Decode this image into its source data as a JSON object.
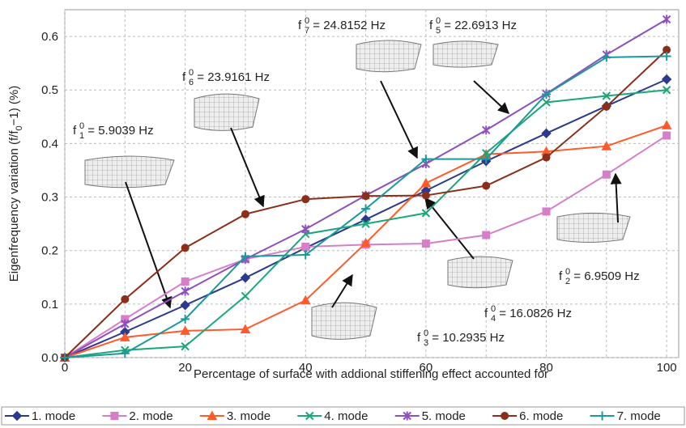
{
  "chart_data": {
    "type": "line",
    "x_label": "Percentage of surface with addional stiffening effect accounted for",
    "y_label": {
      "pre": "Eigenfrequency variation (f/f",
      "sub": "0",
      "post": "−1) (%)"
    },
    "x": [
      0,
      10,
      20,
      30,
      40,
      50,
      60,
      70,
      80,
      90,
      100
    ],
    "xlim": [
      0,
      102
    ],
    "xticks": [
      0,
      20,
      40,
      60,
      80,
      100
    ],
    "x_minor_grid": [
      10,
      30,
      50,
      70,
      90
    ],
    "ylim": [
      0,
      0.65
    ],
    "yticks": [
      {
        "value": 0,
        "label": "0.0"
      },
      0.1,
      0.2,
      0.3,
      0.4,
      0.5,
      0.6
    ],
    "grid": true,
    "legend": "bottom",
    "series": [
      {
        "name": "1. mode",
        "color": "#2b3a8c",
        "marker": "diamond",
        "values": [
          0,
          0.048,
          0.098,
          0.149,
          0.205,
          0.258,
          0.312,
          0.367,
          0.419,
          0.47,
          0.52
        ]
      },
      {
        "name": "2. mode",
        "color": "#d67fc8",
        "marker": "square",
        "values": [
          0,
          0.072,
          0.142,
          0.184,
          0.207,
          0.211,
          0.213,
          0.229,
          0.273,
          0.342,
          0.415
        ]
      },
      {
        "name": "3. mode",
        "color": "#ff5a2a",
        "marker": "triangle",
        "values": [
          0,
          0.038,
          0.05,
          0.053,
          0.107,
          0.214,
          0.326,
          0.38,
          0.385,
          0.395,
          0.434
        ]
      },
      {
        "name": "4. mode",
        "color": "#1aa87a",
        "marker": "x",
        "values": [
          0,
          0.014,
          0.021,
          0.115,
          0.231,
          0.25,
          0.27,
          0.382,
          0.477,
          0.489,
          0.5
        ]
      },
      {
        "name": "5. mode",
        "color": "#8e4fbf",
        "marker": "star",
        "values": [
          0,
          0.063,
          0.124,
          0.184,
          0.24,
          0.303,
          0.362,
          0.425,
          0.493,
          0.566,
          0.632
        ]
      },
      {
        "name": "6. mode",
        "color": "#8b2e1a",
        "marker": "circle",
        "values": [
          0,
          0.109,
          0.205,
          0.268,
          0.296,
          0.302,
          0.303,
          0.321,
          0.374,
          0.469,
          0.575
        ]
      },
      {
        "name": "7. mode",
        "color": "#1a9a9a",
        "marker": "plus",
        "values": [
          0,
          0.008,
          0.072,
          0.189,
          0.192,
          0.278,
          0.371,
          0.371,
          0.492,
          0.561,
          0.563
        ]
      }
    ],
    "annotations": [
      {
        "symbol": "f",
        "sup": "0",
        "sub": "7",
        "text": " = 24.8152 Hz"
      },
      {
        "symbol": "f",
        "sup": "0",
        "sub": "5",
        "text": " = 22.6913 Hz"
      },
      {
        "symbol": "f",
        "sup": "0",
        "sub": "6",
        "text": " = 23.9161 Hz"
      },
      {
        "symbol": "f",
        "sup": "0",
        "sub": "1",
        "text": " = 5.9039 Hz"
      },
      {
        "symbol": "f",
        "sup": "0",
        "sub": "2",
        "text": " = 6.9509 Hz"
      },
      {
        "symbol": "f",
        "sup": "0",
        "sub": "4",
        "text": " = 16.0826 Hz"
      },
      {
        "symbol": "f",
        "sup": "0",
        "sub": "3",
        "text": " = 10.2935 Hz"
      }
    ]
  }
}
